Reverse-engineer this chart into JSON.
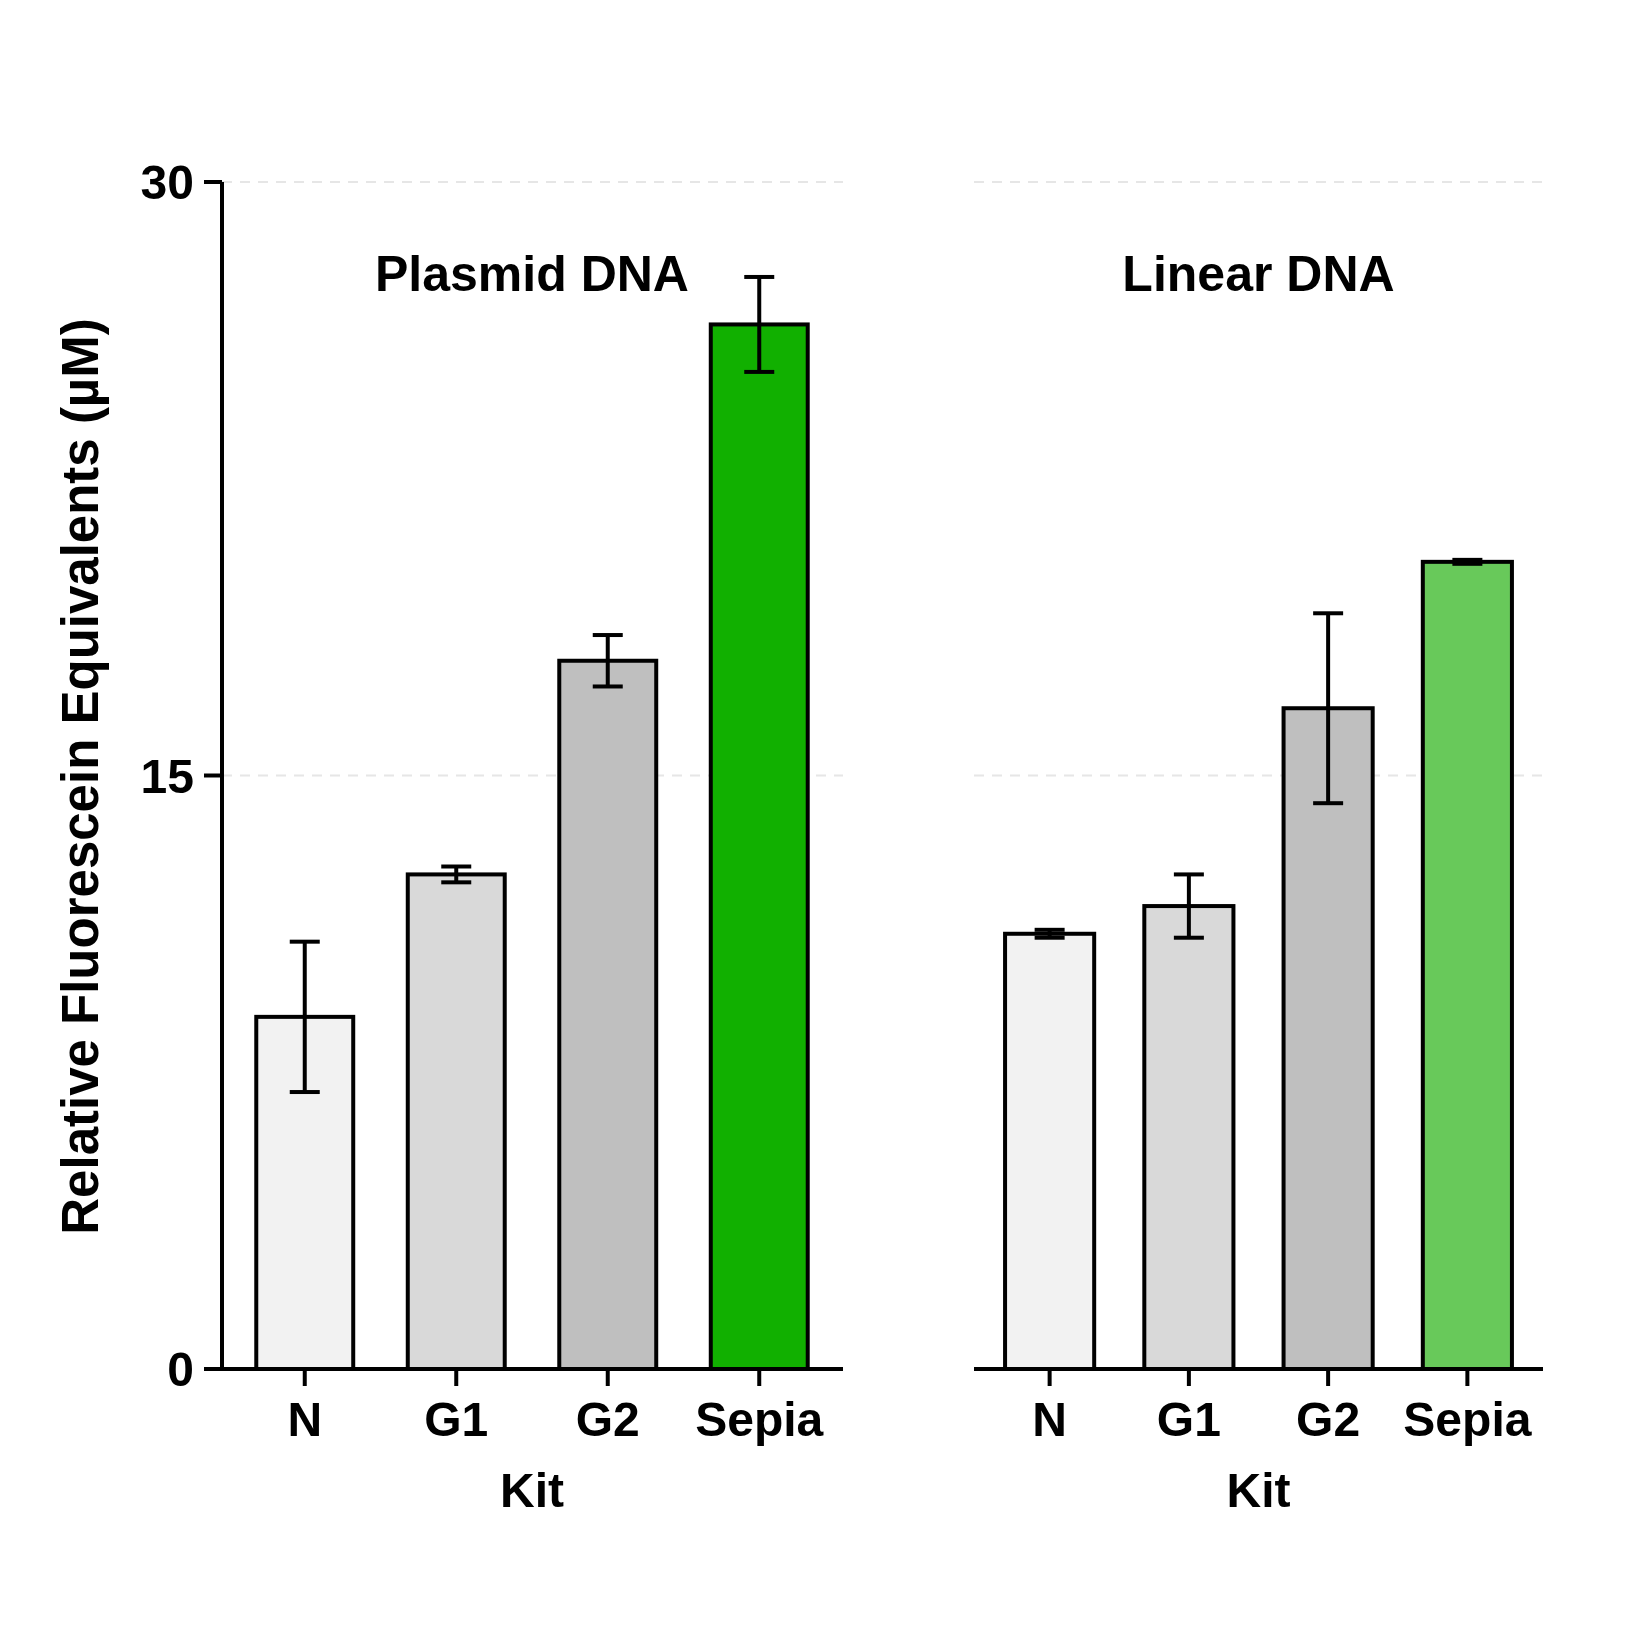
{
  "chart_data": [
    {
      "type": "bar",
      "title": "Plasmid DNA",
      "xlabel": "Kit",
      "ylabel": "Relative Fluorescein Equivalents (µM)",
      "categories": [
        "N",
        "G1",
        "G2",
        "Sepia"
      ],
      "values": [
        8.9,
        12.5,
        17.9,
        26.4
      ],
      "errors": [
        1.9,
        0.2,
        0.65,
        1.2
      ],
      "colors": [
        "#f2f2f2",
        "#d9d9d9",
        "#bfbfbf",
        "#11b000"
      ],
      "ylim": [
        0,
        30
      ],
      "yticks": [
        0,
        15,
        30
      ],
      "grid": "y"
    },
    {
      "type": "bar",
      "title": "Linear DNA",
      "xlabel": "Kit",
      "categories": [
        "N",
        "G1",
        "G2",
        "Sepia"
      ],
      "values": [
        11.0,
        11.7,
        16.7,
        20.4
      ],
      "errors": [
        0.1,
        0.8,
        2.4,
        0.05
      ],
      "colors": [
        "#f2f2f2",
        "#d9d9d9",
        "#bfbfbf",
        "#68c95a"
      ],
      "ylim": [
        0,
        30
      ],
      "yticks": [
        0,
        15,
        30
      ],
      "grid": "y",
      "tick_labels": "x"
    }
  ]
}
